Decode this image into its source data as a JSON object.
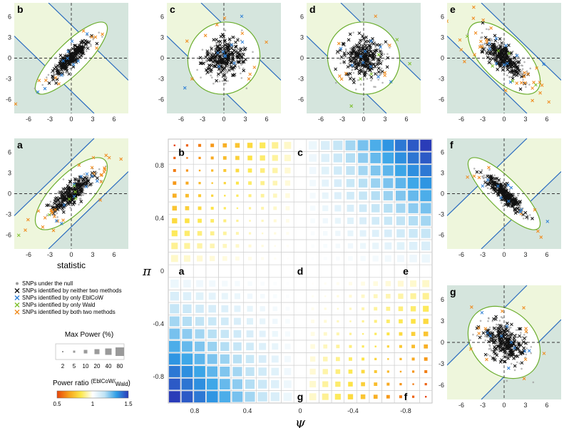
{
  "colors": {
    "light_green": "#eef6dc",
    "teal": "#d5e5dd",
    "blue_line": "#2a6bbf",
    "ellipse": "#6cae2e",
    "null_points": "#9a9a9a",
    "neither": "#111111",
    "only_eblcow": "#2d7fd6",
    "only_wald": "#7cbf2a",
    "both": "#f08a1c",
    "dash": "#333333",
    "grid_line": "#d0d0d0"
  },
  "legend": {
    "items": [
      {
        "marker": "dot",
        "color": "#9a9a9a",
        "label": "SNPs under the null"
      },
      {
        "marker": "x",
        "color": "#111111",
        "label": "SNPs identified by neither two methods"
      },
      {
        "marker": "x",
        "color": "#2d7fd6",
        "label": "SNPs identified by only EblCoW"
      },
      {
        "marker": "x",
        "color": "#7cbf2a",
        "label": "SNPs identified by only Wald"
      },
      {
        "marker": "x",
        "color": "#f08a1c",
        "label": "SNPs identified by both two methods"
      }
    ],
    "size_title": "Max Power (%)",
    "size_labels": [
      "2",
      "5",
      "10",
      "20",
      "40",
      "80"
    ],
    "color_title": "Power ratio",
    "color_title_sup": "(EblCoW/",
    "color_title_sub": "Wald",
    "color_title_close": ")",
    "color_ticks": [
      "0.5",
      "1",
      "1.5"
    ],
    "color_stops": [
      "#e8450a",
      "#f7a21b",
      "#fde84a",
      "#ffffff",
      "#bfe3f5",
      "#2f9fe6",
      "#2a3bb8"
    ]
  },
  "chart_data": [
    {
      "type": "heatmap",
      "xlabel": "ψ",
      "ylabel": "π",
      "x_tick_labels": [
        "0.8",
        "0.4",
        "0",
        "-0.4",
        "-0.8"
      ],
      "y_tick_labels": [
        "0.8",
        "0.4",
        "0",
        "-0.4",
        "-0.8"
      ],
      "x_tick_values": [
        0.8,
        0.4,
        0,
        -0.4,
        -0.8
      ],
      "y_tick_values": [
        0.8,
        0.4,
        0,
        -0.4,
        -0.8
      ],
      "xlim": [
        1,
        -1
      ],
      "ylim": [
        -1,
        1
      ],
      "grid_labels": [
        {
          "text": "b",
          "psi": 0.9,
          "pi": 0.9
        },
        {
          "text": "c",
          "psi": 0.0,
          "pi": 0.9
        },
        {
          "text": "a",
          "psi": 0.9,
          "pi": 0.0
        },
        {
          "text": "d",
          "psi": 0.0,
          "pi": 0.0
        },
        {
          "text": "e",
          "psi": -0.8,
          "pi": 0.0
        },
        {
          "text": "g",
          "psi": 0.0,
          "pi": -0.95
        },
        {
          "text": "f",
          "psi": -0.8,
          "pi": -0.95
        }
      ],
      "n_cells": 21,
      "cell_rule": "power ratio >1 (blue) when psi and pi have opposite signs, <1 (orange) when same sign; max power grows with |psi - pi|"
    },
    {
      "type": "scatter",
      "panel": "b",
      "x_ticks": [
        "-6",
        "-3",
        "0",
        "3",
        "6"
      ],
      "y_ticks": [
        "6",
        "3",
        "0",
        "-3",
        "-6"
      ],
      "xlim": [
        -8,
        8
      ],
      "ylim": [
        -8,
        8
      ],
      "correlation": 0.9,
      "direction": "positive",
      "lines": "anti-diagonal"
    },
    {
      "type": "scatter",
      "panel": "c",
      "x_ticks": [
        "-6",
        "-3",
        "0",
        "3",
        "6"
      ],
      "y_ticks": [
        "6",
        "3",
        "0",
        "-3",
        "-6"
      ],
      "xlim": [
        -8,
        8
      ],
      "ylim": [
        -8,
        8
      ],
      "correlation": 0.1,
      "direction": "weak",
      "lines": "anti-diagonal"
    },
    {
      "type": "scatter",
      "panel": "d",
      "x_ticks": [
        "-6",
        "-3",
        "0",
        "3",
        "6"
      ],
      "y_ticks": [
        "6",
        "3",
        "0",
        "-3",
        "-6"
      ],
      "xlim": [
        -8,
        8
      ],
      "ylim": [
        -8,
        8
      ],
      "correlation": 0.0,
      "direction": "none",
      "lines": "anti-diagonal"
    },
    {
      "type": "scatter",
      "panel": "e",
      "x_ticks": [
        "-6",
        "-3",
        "0",
        "3",
        "6"
      ],
      "y_ticks": [
        "6",
        "3",
        "0",
        "-3",
        "-6"
      ],
      "xlim": [
        -8,
        8
      ],
      "ylim": [
        -8,
        8
      ],
      "correlation": -0.7,
      "direction": "negative",
      "lines": "anti-diagonal"
    },
    {
      "type": "scatter",
      "panel": "a",
      "xlabel": "statistic",
      "x_ticks": [
        "-6",
        "-3",
        "0",
        "3",
        "6"
      ],
      "y_ticks": [
        "6",
        "3",
        "0",
        "-3",
        "-6"
      ],
      "xlim": [
        -8,
        8
      ],
      "ylim": [
        -8,
        8
      ],
      "correlation": 0.8,
      "direction": "positive",
      "lines": "diagonal"
    },
    {
      "type": "scatter",
      "panel": "f",
      "x_ticks": [
        "-6",
        "-3",
        "0",
        "3",
        "6"
      ],
      "y_ticks": [
        "6",
        "3",
        "0",
        "-3",
        "-6"
      ],
      "xlim": [
        -8,
        8
      ],
      "ylim": [
        -8,
        8
      ],
      "correlation": -0.9,
      "direction": "negative",
      "lines": "diagonal"
    },
    {
      "type": "scatter",
      "panel": "g",
      "x_ticks": [
        "-6",
        "-3",
        "0",
        "3",
        "6"
      ],
      "y_ticks": [
        "6",
        "3",
        "0",
        "-3",
        "-6"
      ],
      "xlim": [
        -8,
        8
      ],
      "ylim": [
        -8,
        8
      ],
      "correlation": -0.3,
      "direction": "negative",
      "lines": "diagonal"
    }
  ]
}
